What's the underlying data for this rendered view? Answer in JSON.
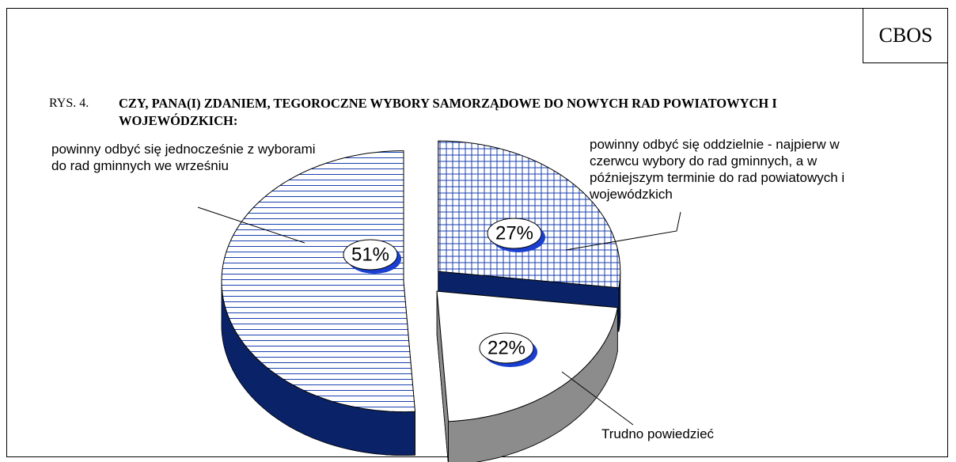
{
  "chart_data": {
    "type": "pie",
    "source": "CBOS",
    "figure_label": "RYS. 4.",
    "title": "CZY, PANA(I) ZDANIEM, TEGOROCZNE WYBORY SAMORZĄDOWE DO NOWYCH RAD POWIATOWYCH I WOJEWÓDZKICH:",
    "categories": [
      "powinny odbyć się oddzielnie - najpierw w czerwcu wybory do rad gminnych, a w późniejszym terminie do rad powiatowych i wojewódzkich",
      "Trudno powiedzieć",
      "powinny odbyć się jednocześnie z wyborami do rad gminnych we wrześniu"
    ],
    "values": [
      27,
      22,
      51
    ],
    "value_labels": [
      "27%",
      "22%",
      "51%"
    ],
    "fills": [
      "crosshatch",
      "none",
      "horizontal"
    ],
    "colors": [
      "#1a3fb0",
      "#ffffff",
      "#1a3fb0"
    ],
    "side_colors": [
      "#0a2368",
      "#8c8c8c",
      "#0a2368"
    ]
  }
}
